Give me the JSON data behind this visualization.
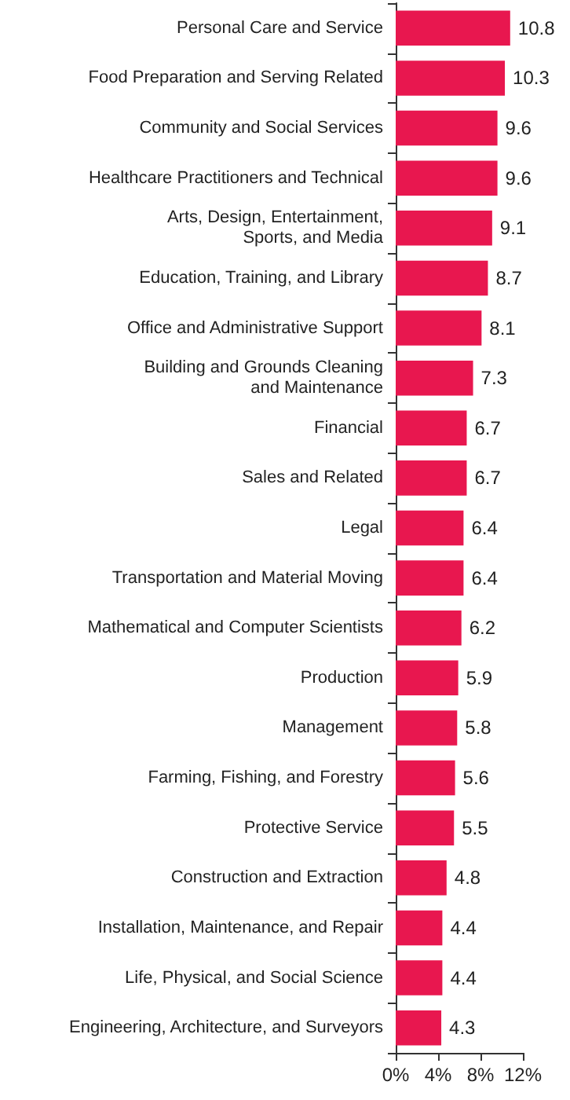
{
  "chart_data": {
    "type": "bar",
    "orientation": "horizontal",
    "categories": [
      "Personal Care and Service",
      "Food Preparation and Serving Related",
      "Community and Social Services",
      "Healthcare Practitioners and Technical",
      "Arts, Design, Entertainment, Sports, and Media",
      "Education, Training, and Library",
      "Office and Administrative Support",
      "Building and Grounds Cleaning and Maintenance",
      "Financial",
      "Sales and Related",
      "Legal",
      "Transportation and Material Moving",
      "Mathematical and Computer Scientists",
      "Production",
      "Management",
      "Farming, Fishing, and Forestry",
      "Protective Service",
      "Construction and Extraction",
      "Installation, Maintenance, and Repair",
      "Life, Physical, and Social Science",
      "Engineering, Architecture, and Surveyors"
    ],
    "values": [
      10.8,
      10.3,
      9.6,
      9.6,
      9.1,
      8.7,
      8.1,
      7.3,
      6.7,
      6.7,
      6.4,
      6.4,
      6.2,
      5.9,
      5.8,
      5.6,
      5.5,
      4.8,
      4.4,
      4.4,
      4.3
    ],
    "color": "#e8174f",
    "xlim": [
      0,
      12
    ],
    "xticks": [
      {
        "value": 0,
        "label": "0%"
      },
      {
        "value": 4,
        "label": "4%"
      },
      {
        "value": 8,
        "label": "8%"
      },
      {
        "value": 12,
        "label": "12%"
      }
    ],
    "data_labels": true
  }
}
